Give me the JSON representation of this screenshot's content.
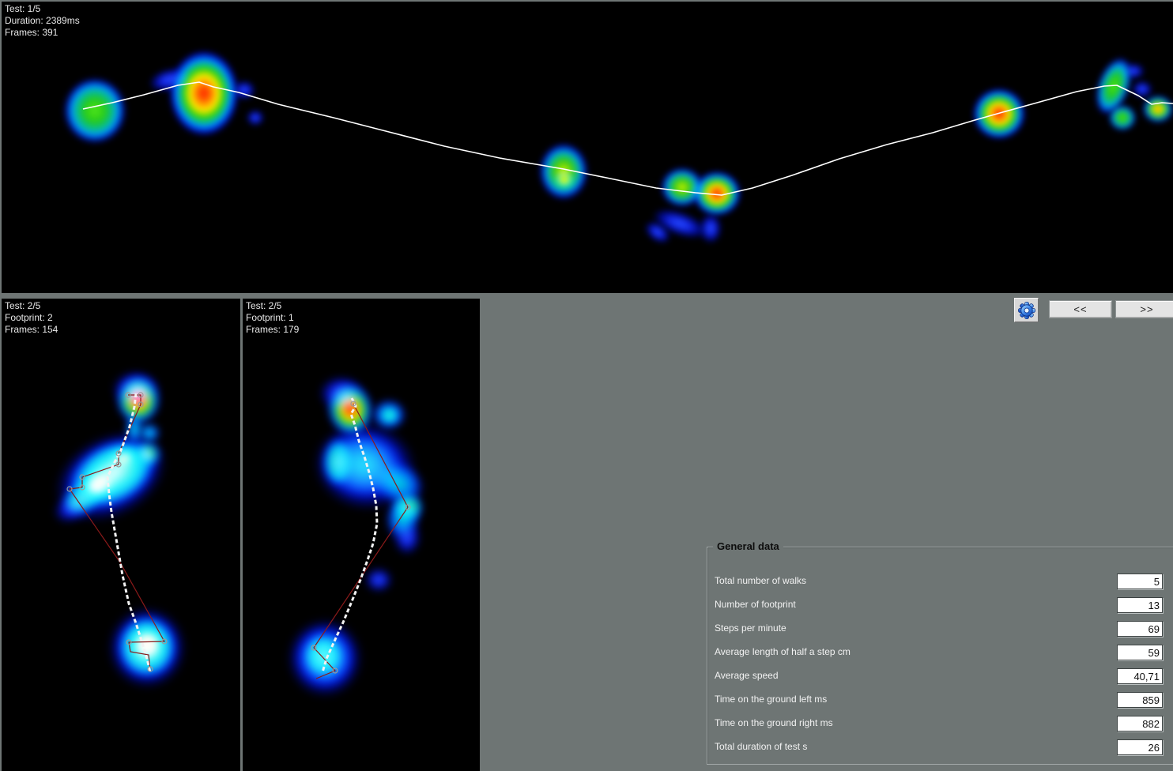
{
  "walkway_panel": {
    "line1": "Test: 1/5",
    "line2": "Duration: 2389ms",
    "line3": "Frames: 391"
  },
  "footprint_left_panel": {
    "line1": "Test: 2/5",
    "line2": "Footprint: 2",
    "line3": "Frames: 154"
  },
  "footprint_right_panel": {
    "line1": "Test: 2/5",
    "line2": "Footprint: 1",
    "line3": "Frames: 179"
  },
  "toolbar": {
    "prev_label": "<<",
    "next_label": ">>",
    "settings_icon": "gear-icon"
  },
  "general_data": {
    "title": "General data",
    "fields": [
      {
        "label": "Total number of walks",
        "value": "5"
      },
      {
        "label": "Number of footprint",
        "value": "13"
      },
      {
        "label": "Steps per minute",
        "value": "69"
      },
      {
        "label": "Average length of half a step cm",
        "value": "59"
      },
      {
        "label": "Average speed",
        "value": "40,71"
      },
      {
        "label": "Time on the ground left ms",
        "value": "859"
      },
      {
        "label": "Time on the ground right ms",
        "value": "882"
      },
      {
        "label": "Total duration of test s",
        "value": "26"
      }
    ]
  },
  "colors": {
    "background": "#6e7574",
    "panel_background": "#000000",
    "trajectory_line": "#ffffff",
    "cop_line": "#8b1a1a",
    "heat_scale_low_to_high": [
      "#0000aa",
      "#0040ff",
      "#00c8c8",
      "#2ecc11",
      "#ffee00",
      "#ff8800",
      "#ff2000"
    ]
  }
}
